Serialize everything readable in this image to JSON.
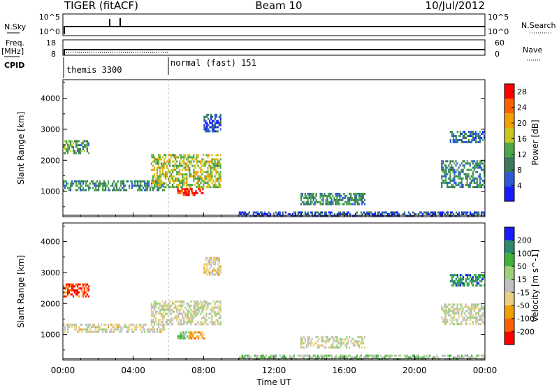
{
  "header": {
    "radar": "TIGER (fitACF)",
    "beam": "Beam 10",
    "date": "10/Jul/2012"
  },
  "top_panels": {
    "nsky_label": "N.Sky",
    "nsky_ticks": [
      "10^5",
      "10^0"
    ],
    "nsearch_label": "N.Search",
    "nsearch_ticks": [
      "10^5",
      "10^0"
    ],
    "freq_label": "Freq.",
    "freq_unit": "[MHz]",
    "freq_ticks": [
      "18",
      "8"
    ],
    "nave_label": "Nave",
    "nave_ticks": [
      "60",
      "0"
    ],
    "cpid_label": "CPID",
    "cpid_segments": [
      {
        "label": "themis 3300",
        "start_hour": 0
      },
      {
        "label": "normal (fast) 151",
        "start_hour": 6.0
      }
    ]
  },
  "chart_data": [
    {
      "type": "heatmap",
      "title": "",
      "xlabel": "Time UT",
      "ylabel": "Slant Range [km]",
      "x_ticks": [
        "00:00",
        "04:00",
        "08:00",
        "12:00",
        "16:00",
        "20:00",
        "00:00"
      ],
      "y_ticks": [
        1000,
        2000,
        3000,
        4000
      ],
      "xlim_hours": [
        0,
        24
      ],
      "ylim_km": [
        180,
        4600
      ],
      "colorbar": {
        "label": "Power [dB]",
        "ticks": [
          4,
          8,
          12,
          16,
          20,
          24,
          28
        ],
        "range": [
          0,
          30
        ],
        "colors": [
          "#1a1aff",
          "#2a5ad8",
          "#3a7a5a",
          "#4aa84a",
          "#c8c820",
          "#f0a000",
          "#ff6000",
          "#ff0000"
        ]
      },
      "echo_regions": [
        {
          "t0": 0.0,
          "t1": 5.8,
          "r0": 1000,
          "r1": 1350,
          "value": 10
        },
        {
          "t0": 0.0,
          "t1": 1.5,
          "r0": 2200,
          "r1": 2650,
          "value": 12
        },
        {
          "t0": 5.0,
          "t1": 9.0,
          "r0": 1100,
          "r1": 2200,
          "value": 16
        },
        {
          "t0": 6.5,
          "t1": 8.0,
          "r0": 850,
          "r1": 1100,
          "value": 28
        },
        {
          "t0": 8.0,
          "t1": 9.0,
          "r0": 2900,
          "r1": 3500,
          "value": 6
        },
        {
          "t0": 13.5,
          "t1": 17.2,
          "r0": 550,
          "r1": 950,
          "value": 10
        },
        {
          "t0": 21.5,
          "t1": 24.0,
          "r0": 1100,
          "r1": 2000,
          "value": 10
        },
        {
          "t0": 22.0,
          "t1": 24.0,
          "r0": 2550,
          "r1": 2950,
          "value": 8
        },
        {
          "t0": 10.0,
          "t1": 24.0,
          "r0": 180,
          "r1": 350,
          "value": 6
        }
      ]
    },
    {
      "type": "heatmap",
      "title": "",
      "xlabel": "Time UT",
      "ylabel": "Slant Range [km]",
      "x_ticks": [
        "00:00",
        "04:00",
        "08:00",
        "12:00",
        "16:00",
        "20:00",
        "00:00"
      ],
      "y_ticks": [
        1000,
        2000,
        3000,
        4000
      ],
      "xlim_hours": [
        0,
        24
      ],
      "ylim_km": [
        180,
        4600
      ],
      "colorbar": {
        "label": "Velocity [m s^-1]",
        "ticks": [
          200,
          100,
          50,
          15,
          -15,
          -50,
          -100,
          -200
        ],
        "range": [
          -250,
          250
        ],
        "colors": [
          "#ff0000",
          "#ff6000",
          "#f0a000",
          "#e8d080",
          "#c0c0c0",
          "#9ad07a",
          "#3cb43c",
          "#2a8a6a",
          "#1a1aff"
        ]
      },
      "echo_regions": [
        {
          "t0": 0.0,
          "t1": 1.5,
          "r0": 2200,
          "r1": 2650,
          "value": -200
        },
        {
          "t0": 0.0,
          "t1": 5.8,
          "r0": 1050,
          "r1": 1350,
          "value": -20
        },
        {
          "t0": 5.0,
          "t1": 9.0,
          "r0": 1300,
          "r1": 2100,
          "value": 0
        },
        {
          "t0": 6.5,
          "t1": 7.2,
          "r0": 850,
          "r1": 1100,
          "value": 60
        },
        {
          "t0": 7.2,
          "t1": 8.2,
          "r0": 850,
          "r1": 1100,
          "value": -100
        },
        {
          "t0": 8.0,
          "t1": 9.0,
          "r0": 2900,
          "r1": 3500,
          "value": -40
        },
        {
          "t0": 13.5,
          "t1": 17.2,
          "r0": 550,
          "r1": 950,
          "value": 0
        },
        {
          "t0": 21.5,
          "t1": 24.0,
          "r0": 1300,
          "r1": 2000,
          "value": 0
        },
        {
          "t0": 22.0,
          "t1": 24.0,
          "r0": 2550,
          "r1": 2950,
          "value": 150
        },
        {
          "t0": 10.0,
          "t1": 24.0,
          "r0": 180,
          "r1": 350,
          "value": 40
        }
      ]
    }
  ]
}
